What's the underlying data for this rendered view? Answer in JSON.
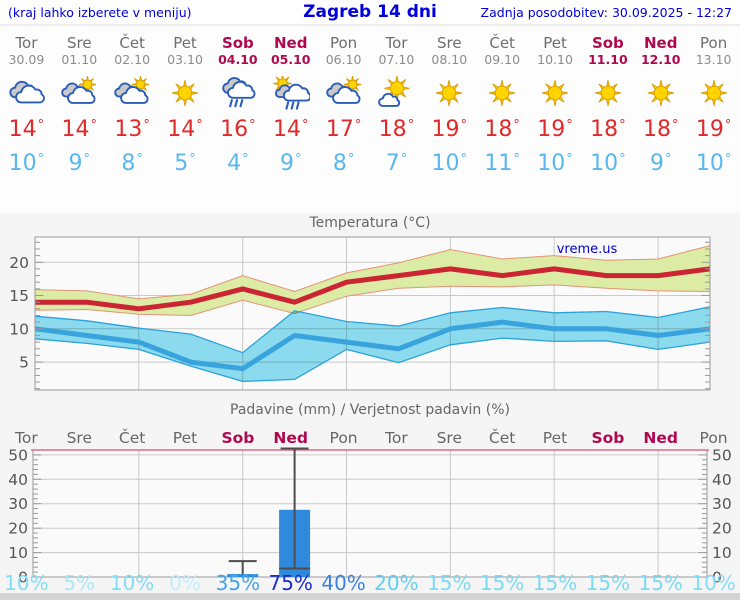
{
  "header": {
    "left_note": "(kraj lahko izberete v meniju)",
    "title": "Zagreb 14 dni",
    "updated": "Zadnja posodobitev: 30.09.2025 - 12:27"
  },
  "units": {
    "degree": "°"
  },
  "colors": {
    "header_blue": "#0000dd",
    "weekend": "#b0084e",
    "high_temp_text": "#e02a2a",
    "low_temp_text": "#5ab7ed",
    "grid": "#c9c9c9",
    "frame": "#999999",
    "plot_bg": "#fafafa",
    "precip_top_frame": "#e06a8a",
    "bar_fill": "#2f8ade",
    "whisker": "#4d4d4d",
    "watermark_blue": "#0000cc"
  },
  "forecast": {
    "days": [
      {
        "name": "Tor",
        "date": "30.09",
        "weekend": false,
        "icon": "cloudy",
        "high": 14,
        "low": 10
      },
      {
        "name": "Sre",
        "date": "01.10",
        "weekend": false,
        "icon": "partly-sunny",
        "high": 14,
        "low": 9
      },
      {
        "name": "Čet",
        "date": "02.10",
        "weekend": false,
        "icon": "partly-sunny",
        "high": 13,
        "low": 8
      },
      {
        "name": "Pet",
        "date": "03.10",
        "weekend": false,
        "icon": "sunny",
        "high": 14,
        "low": 5
      },
      {
        "name": "Sob",
        "date": "04.10",
        "weekend": true,
        "icon": "rain",
        "high": 16,
        "low": 4
      },
      {
        "name": "Ned",
        "date": "05.10",
        "weekend": true,
        "icon": "sun-rain",
        "high": 14,
        "low": 9
      },
      {
        "name": "Pon",
        "date": "06.10",
        "weekend": false,
        "icon": "partly-sunny",
        "high": 17,
        "low": 8
      },
      {
        "name": "Tor",
        "date": "07.10",
        "weekend": false,
        "icon": "mostly-sunny",
        "high": 18,
        "low": 7
      },
      {
        "name": "Sre",
        "date": "08.10",
        "weekend": false,
        "icon": "sunny",
        "high": 19,
        "low": 10
      },
      {
        "name": "Čet",
        "date": "09.10",
        "weekend": false,
        "icon": "sunny",
        "high": 18,
        "low": 11
      },
      {
        "name": "Pet",
        "date": "10.10",
        "weekend": false,
        "icon": "sunny",
        "high": 19,
        "low": 10
      },
      {
        "name": "Sob",
        "date": "11.10",
        "weekend": true,
        "icon": "sunny",
        "high": 18,
        "low": 10
      },
      {
        "name": "Ned",
        "date": "12.10",
        "weekend": true,
        "icon": "sunny",
        "high": 18,
        "low": 9
      },
      {
        "name": "Pon",
        "date": "13.10",
        "weekend": false,
        "icon": "sunny",
        "high": 19,
        "low": 10
      }
    ]
  },
  "chart_data": [
    {
      "type": "line",
      "title": "Temperatura (°C)",
      "watermark": "vreme.us",
      "categories": [
        "30.09",
        "01.10",
        "02.10",
        "03.10",
        "04.10",
        "05.10",
        "06.10",
        "07.10",
        "08.10",
        "09.10",
        "10.10",
        "11.10",
        "12.10",
        "13.10"
      ],
      "ylim": [
        0.8,
        23.8
      ],
      "yticks": [
        5,
        10,
        15,
        20
      ],
      "grid": true,
      "series": [
        {
          "name": "high",
          "color": "#cb2433",
          "values": [
            14,
            14,
            13,
            14,
            16,
            14,
            17,
            18,
            19,
            18,
            19,
            18,
            18,
            19
          ]
        },
        {
          "name": "high_range_upper",
          "color": "#e29377",
          "values": [
            15.9,
            15.7,
            14.5,
            15.2,
            18.0,
            15.6,
            18.4,
            19.9,
            21.9,
            20.5,
            21.0,
            20.3,
            20.5,
            22.5
          ]
        },
        {
          "name": "high_range_lower",
          "color": "#e29377",
          "values": [
            12.8,
            12.9,
            12.2,
            12.0,
            14.3,
            12.3,
            14.9,
            16.1,
            16.4,
            16.3,
            16.6,
            16.1,
            15.7,
            15.6
          ]
        },
        {
          "name": "low",
          "color": "#39a3dd",
          "values": [
            10,
            9,
            8,
            5,
            4,
            9,
            8,
            7,
            10,
            11,
            10,
            10,
            9,
            10
          ]
        },
        {
          "name": "low_range_upper",
          "color": "#2ba2d8",
          "values": [
            11.9,
            11.2,
            10.1,
            9.2,
            6.4,
            12.7,
            11.1,
            10.4,
            12.4,
            13.2,
            12.4,
            12.6,
            11.7,
            13.3
          ]
        },
        {
          "name": "low_range_lower",
          "color": "#2ba2d8",
          "values": [
            8.5,
            7.8,
            6.9,
            4.4,
            2.1,
            2.4,
            6.9,
            4.9,
            7.6,
            8.6,
            8.1,
            8.2,
            6.9,
            8.0
          ]
        }
      ],
      "band_fills": {
        "high": "#dceca4",
        "low": "#8edff2"
      }
    },
    {
      "type": "bar",
      "title": "Padavine (mm) / Verjetnost padavin (%)",
      "categories": [
        "Tor",
        "Sre",
        "Čet",
        "Pet",
        "Sob",
        "Ned",
        "Pon",
        "Tor",
        "Sre",
        "Čet",
        "Pet",
        "Sob",
        "Ned",
        "Pon"
      ],
      "weekend": [
        false,
        false,
        false,
        false,
        true,
        true,
        false,
        false,
        false,
        false,
        false,
        true,
        true,
        false
      ],
      "ylim": [
        0,
        52
      ],
      "yticks": [
        0,
        10,
        20,
        30,
        40,
        50
      ],
      "bars": [
        {
          "day_index": 4,
          "amount": 1.2,
          "range_top": 6.5,
          "range_clipped": false
        },
        {
          "day_index": 5,
          "amount": 27.5,
          "median": 3.5,
          "range_top": 52,
          "range_clipped": true
        }
      ],
      "probability": [
        {
          "label": "10%",
          "color": "#82ddf6"
        },
        {
          "label": "5%",
          "color": "#a9e7f9"
        },
        {
          "label": "10%",
          "color": "#82ddf6"
        },
        {
          "label": "0%",
          "color": "#c2eefb"
        },
        {
          "label": "35%",
          "color": "#43a4e8"
        },
        {
          "label": "75%",
          "color": "#1e2acb"
        },
        {
          "label": "40%",
          "color": "#3b84de"
        },
        {
          "label": "20%",
          "color": "#62cef0"
        },
        {
          "label": "15%",
          "color": "#7cd9f4"
        },
        {
          "label": "15%",
          "color": "#7cd9f4"
        },
        {
          "label": "15%",
          "color": "#7cd9f4"
        },
        {
          "label": "15%",
          "color": "#7cd9f4"
        },
        {
          "label": "15%",
          "color": "#7cd9f4"
        },
        {
          "label": "10%",
          "color": "#82ddf6"
        }
      ]
    }
  ]
}
